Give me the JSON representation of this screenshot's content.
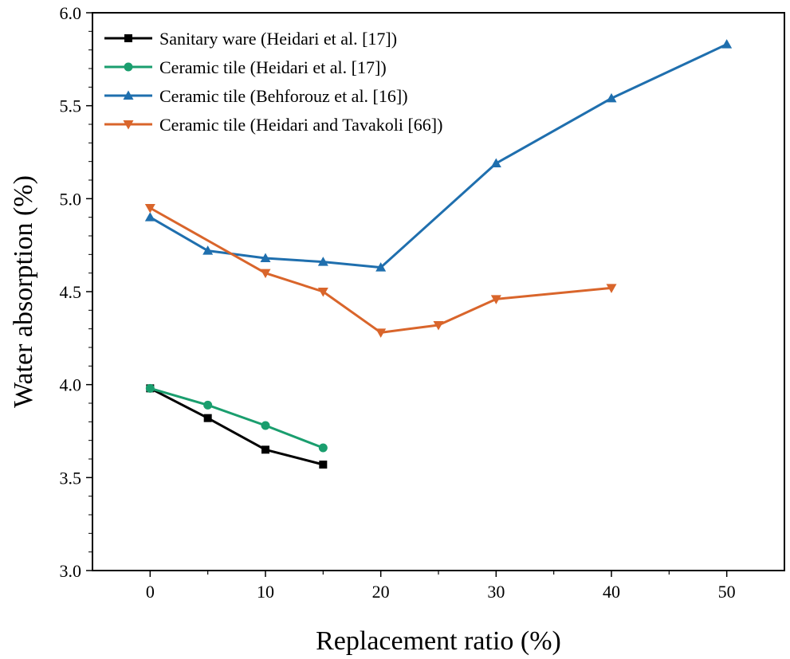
{
  "chart_data": {
    "type": "line",
    "title": "",
    "xlabel": "Replacement ratio (%)",
    "ylabel": "Water absorption (%)",
    "xlim": [
      -5,
      55
    ],
    "ylim": [
      3.0,
      6.0
    ],
    "xticks": [
      0,
      10,
      20,
      30,
      40,
      50
    ],
    "yticks": [
      "3.0",
      "3.5",
      "4.0",
      "4.5",
      "5.0",
      "5.5",
      "6.0"
    ],
    "legend_position": "top-left",
    "series": [
      {
        "name": "Sanitary ware (Heidari et al. [17])",
        "color": "#000000",
        "marker": "square",
        "x": [
          0,
          5,
          10,
          15
        ],
        "y": [
          3.98,
          3.82,
          3.65,
          3.57
        ]
      },
      {
        "name": "Ceramic tile (Heidari et al.  [17])",
        "color": "#1a9e6e",
        "marker": "circle",
        "x": [
          0,
          5,
          10,
          15
        ],
        "y": [
          3.98,
          3.89,
          3.78,
          3.66
        ]
      },
      {
        "name": "Ceramic tile (Behforouz et al. [16])",
        "color": "#1f6fae",
        "marker": "triangle-up",
        "x": [
          0,
          5,
          10,
          15,
          20,
          30,
          40,
          50
        ],
        "y": [
          4.9,
          4.72,
          4.68,
          4.66,
          4.63,
          5.19,
          5.54,
          5.83
        ]
      },
      {
        "name": "Ceramic tile (Heidari and Tavakoli [66])",
        "color": "#d9652b",
        "marker": "triangle-down",
        "x": [
          0,
          10,
          15,
          20,
          25,
          30,
          40
        ],
        "y": [
          4.95,
          4.6,
          4.5,
          4.28,
          4.32,
          4.46,
          4.52
        ]
      }
    ]
  }
}
